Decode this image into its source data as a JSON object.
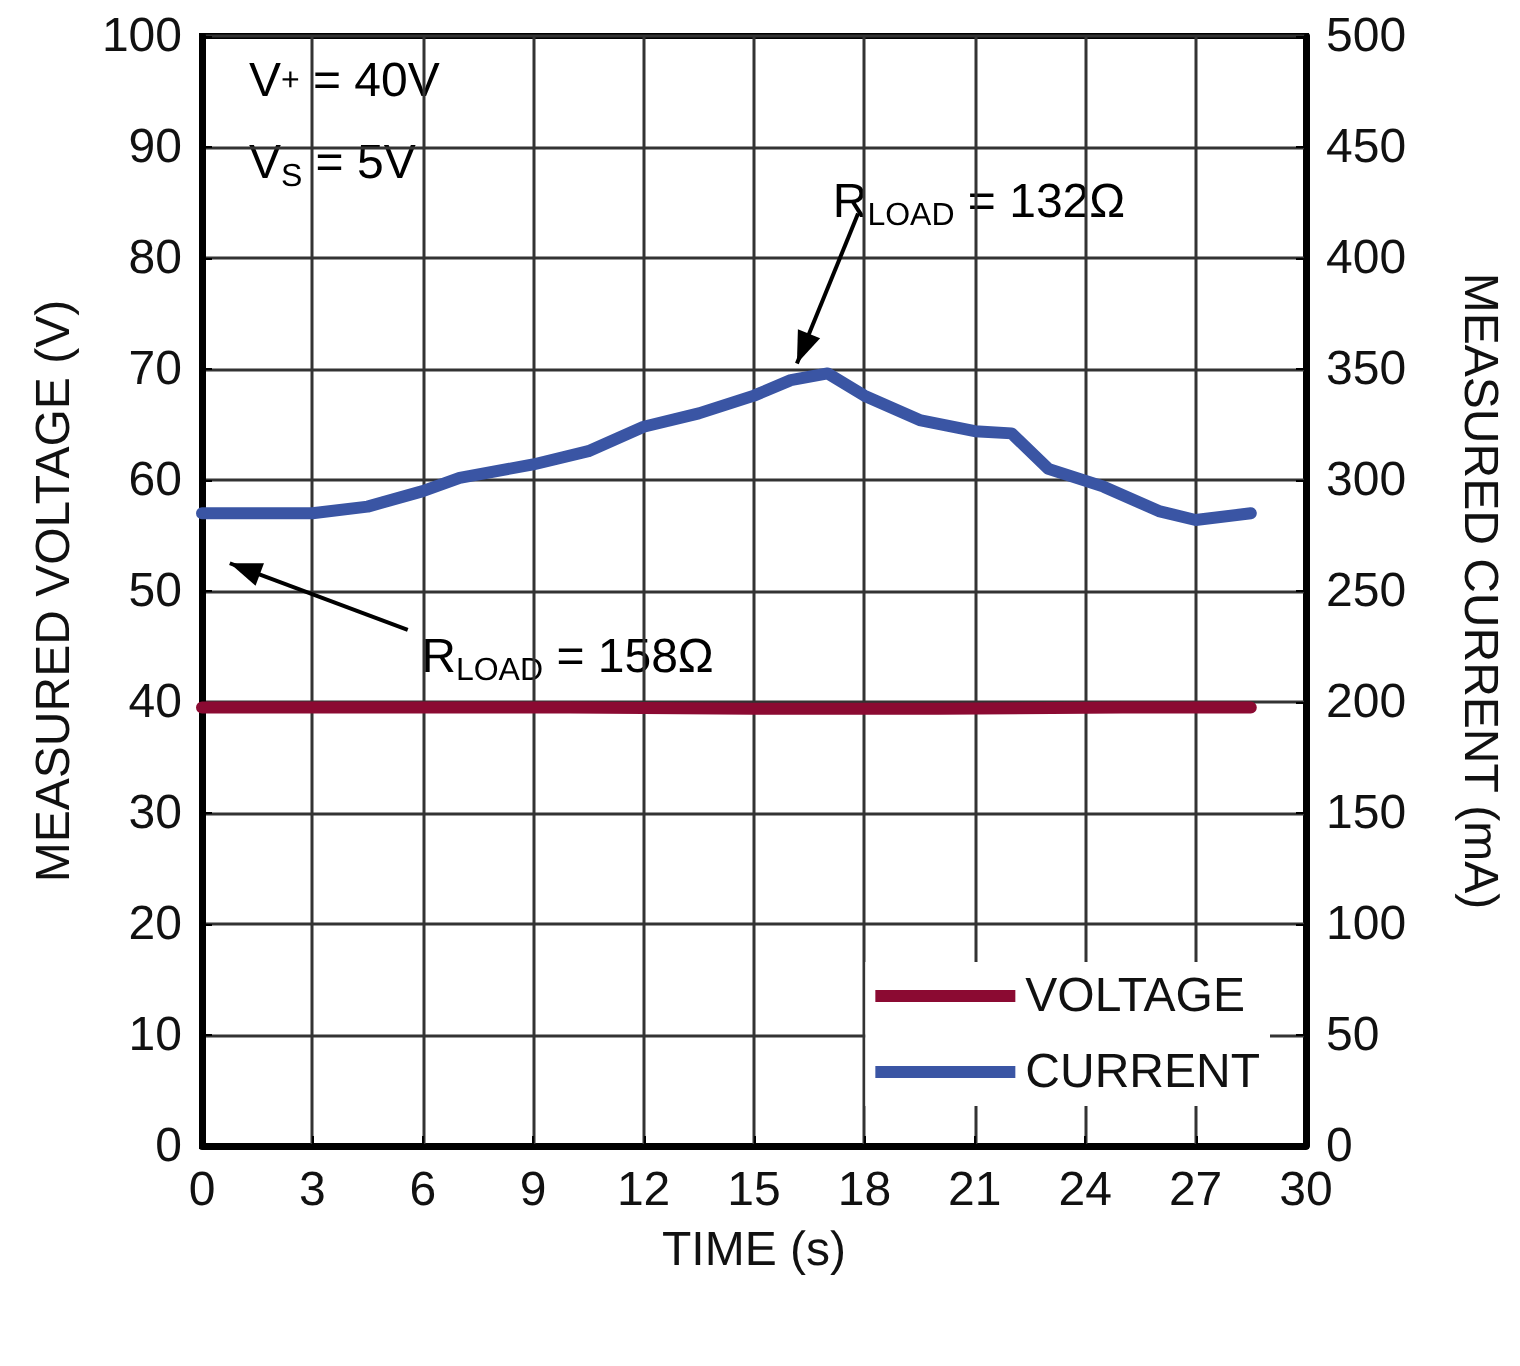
{
  "chart_data": {
    "type": "line",
    "xlabel": "TIME (s)",
    "ylabel": "MEASURED VOLTAGE (V)",
    "y2label": "MEASURED CURRENT (mA)",
    "xlim": [
      0,
      30
    ],
    "xticks": [
      0,
      3,
      6,
      9,
      12,
      15,
      18,
      21,
      24,
      27,
      30
    ],
    "ylim": [
      0,
      100
    ],
    "yticks": [
      0,
      10,
      20,
      30,
      40,
      50,
      60,
      70,
      80,
      90,
      100
    ],
    "y2lim": [
      0,
      500
    ],
    "y2ticks": [
      0,
      50,
      100,
      150,
      200,
      250,
      300,
      350,
      400,
      450,
      500
    ],
    "grid": true,
    "legend": "bottom right",
    "line_style": "solid",
    "marker": "none",
    "annotations": [
      "V$^{+}$ = 40V",
      "V$_{S}$ = 5V",
      "R$_{LOAD}$ = 132Ω",
      "R$_{LOAD}$ = 158Ω"
    ],
    "series": [
      {
        "name": "VOLTAGE",
        "color": "#8b0a32",
        "x": [
          0,
          5,
          10,
          15,
          20,
          25,
          28.5
        ],
        "values": [
          39.5,
          39.5,
          39.5,
          39.4,
          39.4,
          39.5,
          39.5
        ]
      },
      {
        "name": "CURRENT",
        "color": "#3a55a4",
        "axis": "y2",
        "x": [
          0,
          3,
          4.5,
          6,
          7,
          9,
          10.5,
          12,
          13.5,
          15,
          16,
          17,
          18,
          19.5,
          21,
          22,
          23,
          24.5,
          26,
          27,
          28.5
        ],
        "values": [
          285,
          285,
          288,
          295,
          301,
          307,
          313,
          324,
          330,
          338,
          345,
          348,
          338,
          327,
          322,
          321,
          305,
          297,
          286,
          282,
          285
        ]
      }
    ]
  }
}
